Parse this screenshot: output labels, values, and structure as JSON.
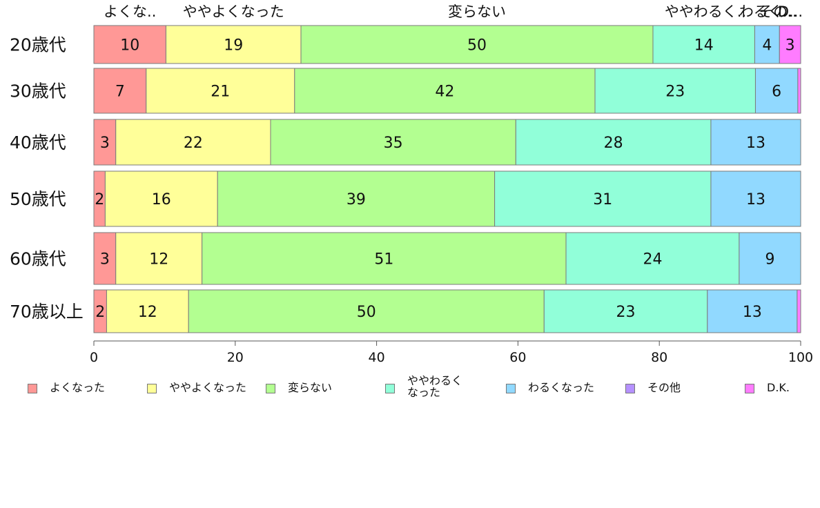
{
  "chart_data": {
    "type": "bar",
    "orientation": "horizontal",
    "stacked": true,
    "title": "",
    "xlabel": "",
    "ylabel": "",
    "xlim": [
      0,
      100
    ],
    "x_ticks": [
      "0",
      "20",
      "40",
      "60",
      "80",
      "100"
    ],
    "grid": false,
    "legend_position": "bottom",
    "categories": [
      "20歳代",
      "30歳代",
      "40歳代",
      "50歳代",
      "60歳代",
      "70歳以上"
    ],
    "series": [
      {
        "name": "よくなった",
        "color": "#ff9896",
        "values": [
          10.2,
          7.4,
          3.1,
          1.6,
          3.1,
          1.8
        ],
        "labels": [
          "10",
          "7",
          "3",
          "2",
          "3",
          "2"
        ]
      },
      {
        "name": "ややよくなった",
        "color": "#ffff99",
        "values": [
          19.1,
          21.0,
          21.9,
          15.9,
          12.2,
          11.6
        ],
        "labels": [
          "19",
          "21",
          "22",
          "16",
          "12",
          "12"
        ]
      },
      {
        "name": "変らない",
        "color": "#b3ff91",
        "values": [
          49.8,
          42.5,
          34.7,
          39.2,
          51.5,
          50.3
        ],
        "labels": [
          "50",
          "42",
          "35",
          "39",
          "51",
          "50"
        ]
      },
      {
        "name": "ややわるく\nなった",
        "color": "#91ffd9",
        "values": [
          14.4,
          22.7,
          27.6,
          30.6,
          24.5,
          23.1
        ],
        "labels": [
          "14",
          "23",
          "28",
          "31",
          "24",
          "23"
        ]
      },
      {
        "name": "わるくなった",
        "color": "#91d9ff",
        "values": [
          3.5,
          6.0,
          12.7,
          12.7,
          8.7,
          12.7
        ],
        "labels": [
          "4",
          "6",
          "13",
          "13",
          "9",
          "13"
        ]
      },
      {
        "name": "その他",
        "color": "#b591ff",
        "values": [
          0,
          0,
          0,
          0,
          0,
          0
        ],
        "labels": [
          "",
          "",
          "",
          "",
          "",
          ""
        ]
      },
      {
        "name": "D.K.",
        "color": "#ff7cff",
        "values": [
          3.0,
          0.4,
          0,
          0,
          0,
          0.5
        ],
        "labels": [
          "3",
          "",
          "",
          "",
          "",
          ""
        ]
      }
    ],
    "top_labels": [
      "よくな..",
      "ややよくなった",
      "変らない",
      "ややわるく..",
      "わるく..",
      "その..",
      "D..."
    ]
  }
}
